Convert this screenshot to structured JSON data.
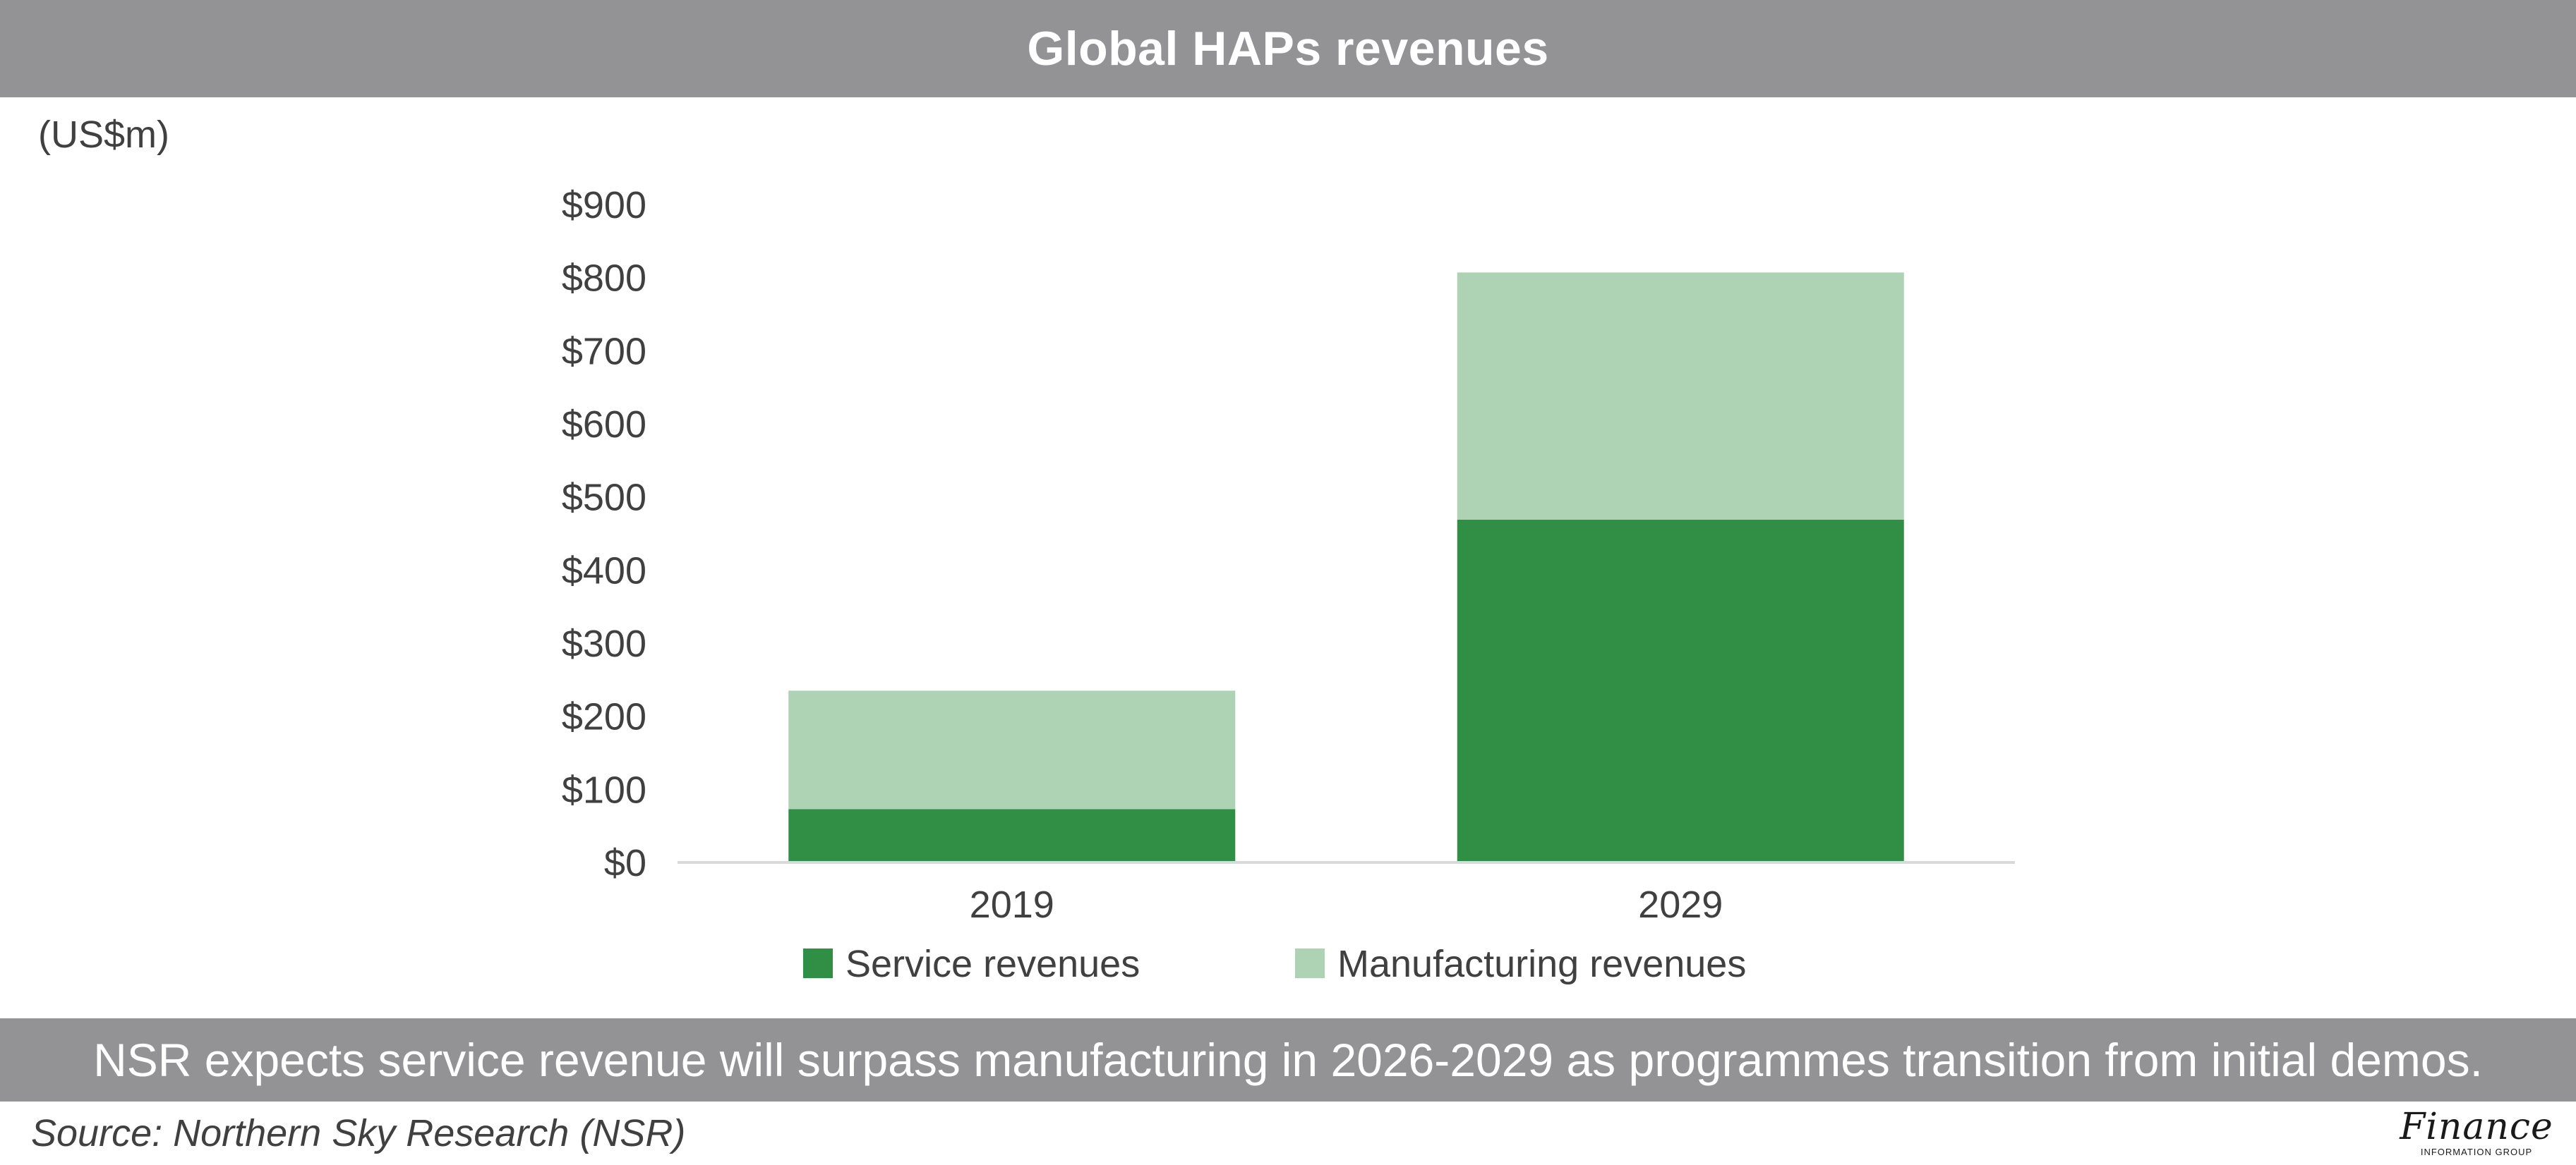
{
  "header": {
    "title": "Global HAPs revenues"
  },
  "unit_label": "(US$m)",
  "caption": "NSR expects service revenue will surpass manufacturing in 2026-2029 as programmes transition from initial demos.",
  "source": "Source: Northern Sky Research (NSR)",
  "logo": {
    "main": "Finance",
    "sub": "INFORMATION GROUP"
  },
  "colors": {
    "header_bg": "#939396",
    "service": "#318e45",
    "manufacturing": "#aed2b4",
    "axis": "#d9d9d9",
    "text": "#404040"
  },
  "chart_data": {
    "type": "bar",
    "stacked": true,
    "title": "Global HAPs revenues",
    "ylabel": "(US$m)",
    "categories": [
      "2019",
      "2029"
    ],
    "series": [
      {
        "name": "Service revenues",
        "values": [
          73,
          469
        ]
      },
      {
        "name": "Manufacturing revenues",
        "values": [
          162,
          338
        ]
      }
    ],
    "ylim": [
      0,
      900
    ],
    "yticks": [
      0,
      100,
      200,
      300,
      400,
      500,
      600,
      700,
      800,
      900
    ],
    "ytick_labels": [
      "$0",
      "$100",
      "$200",
      "$300",
      "$400",
      "$500",
      "$600",
      "$700",
      "$800",
      "$900"
    ],
    "grid": false,
    "legend_position": "bottom"
  }
}
